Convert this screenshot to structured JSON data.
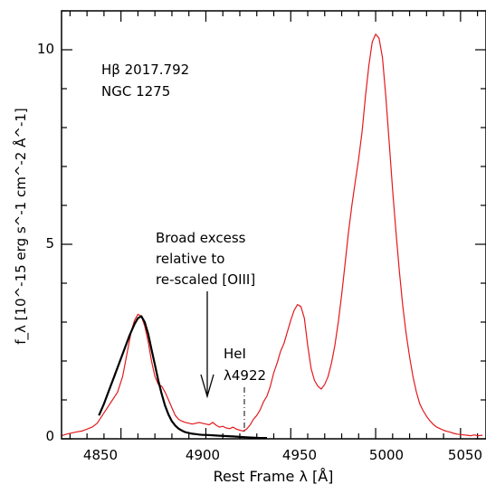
{
  "chart_data": {
    "type": "line",
    "xlabel": "Rest Frame λ [Å]",
    "ylabel": "f_λ [10^-15 erg s^-1 cm^-2 Å^-1]",
    "xlim": [
      4815,
      5065
    ],
    "ylim": [
      0,
      11
    ],
    "x_ticks": [
      "4850",
      "4900",
      "4950",
      "5000",
      "5050"
    ],
    "y_ticks": [
      "0",
      "5",
      "10"
    ],
    "grid": false,
    "colors": {
      "observed": "#e31a1c",
      "rescaled": "#000000",
      "axes": "#000000"
    },
    "annotations": {
      "line1": "Hβ 2017.792",
      "line2": "NGC 1275",
      "excess": [
        "Broad excess",
        "relative to",
        "re-scaled [OIII]"
      ],
      "hei_label": [
        "HeI",
        "λ4922"
      ]
    },
    "series": [
      {
        "x": [
          4815,
          4818,
          4821,
          4824,
          4827,
          4830,
          4833,
          4836,
          4839,
          4842,
          4845,
          4848,
          4851,
          4854,
          4856,
          4858,
          4860,
          4862,
          4864,
          4866,
          4868,
          4870,
          4872,
          4874,
          4876,
          4878,
          4880,
          4882,
          4884,
          4886,
          4888,
          4890,
          4892,
          4894,
          4896,
          4898,
          4900,
          4902,
          4904,
          4906,
          4908,
          4910,
          4912,
          4914,
          4916,
          4918,
          4920,
          4922,
          4924,
          4926,
          4928,
          4930,
          4932,
          4934,
          4936,
          4938,
          4940,
          4942,
          4944,
          4946,
          4948,
          4950,
          4952,
          4954,
          4956,
          4958,
          4960,
          4962,
          4964,
          4966,
          4968,
          4970,
          4972,
          4974,
          4976,
          4978,
          4980,
          4982,
          4984,
          4986,
          4988,
          4990,
          4992,
          4994,
          4996,
          4998,
          5000,
          5002,
          5004,
          5006,
          5008,
          5010,
          5012,
          5014,
          5016,
          5018,
          5020,
          5022,
          5024,
          5026,
          5028,
          5030,
          5032,
          5034,
          5036,
          5038,
          5040,
          5042,
          5044,
          5046,
          5048,
          5050,
          5052,
          5054,
          5056,
          5058,
          5060,
          5063
        ],
        "values": [
          0.08,
          0.12,
          0.15,
          0.18,
          0.2,
          0.25,
          0.3,
          0.4,
          0.6,
          0.8,
          1.0,
          1.2,
          1.6,
          2.3,
          2.75,
          3.05,
          3.2,
          3.15,
          2.9,
          2.5,
          2.0,
          1.6,
          1.4,
          1.35,
          1.2,
          1.0,
          0.8,
          0.6,
          0.5,
          0.45,
          0.42,
          0.4,
          0.38,
          0.4,
          0.42,
          0.4,
          0.38,
          0.36,
          0.42,
          0.35,
          0.3,
          0.32,
          0.28,
          0.26,
          0.3,
          0.25,
          0.22,
          0.2,
          0.25,
          0.35,
          0.5,
          0.6,
          0.75,
          0.95,
          1.1,
          1.35,
          1.7,
          1.95,
          2.25,
          2.45,
          2.75,
          3.05,
          3.3,
          3.45,
          3.4,
          3.1,
          2.4,
          1.8,
          1.5,
          1.35,
          1.28,
          1.4,
          1.6,
          1.95,
          2.4,
          3.0,
          3.7,
          4.5,
          5.3,
          6.0,
          6.6,
          7.2,
          7.9,
          8.8,
          9.6,
          10.2,
          10.4,
          10.3,
          9.8,
          8.8,
          7.6,
          6.4,
          5.3,
          4.3,
          3.4,
          2.7,
          2.1,
          1.6,
          1.2,
          0.9,
          0.72,
          0.58,
          0.46,
          0.37,
          0.3,
          0.26,
          0.22,
          0.19,
          0.17,
          0.14,
          0.12,
          0.11,
          0.1,
          0.09,
          0.08,
          0.1,
          0.08,
          0.09
        ]
      },
      {
        "x": [
          4837,
          4840,
          4843,
          4846,
          4849,
          4852,
          4855,
          4858,
          4860,
          4862,
          4864,
          4866,
          4868,
          4870,
          4872,
          4874,
          4876,
          4878,
          4880,
          4882,
          4884,
          4886,
          4888,
          4890,
          4892,
          4894,
          4896,
          4898,
          4900,
          4904,
          4908,
          4912,
          4916,
          4920,
          4924,
          4928,
          4932,
          4936
        ],
        "values": [
          0.6,
          0.9,
          1.25,
          1.6,
          1.95,
          2.3,
          2.65,
          2.95,
          3.1,
          3.15,
          3.0,
          2.7,
          2.3,
          1.9,
          1.5,
          1.15,
          0.85,
          0.62,
          0.45,
          0.34,
          0.26,
          0.21,
          0.17,
          0.15,
          0.13,
          0.12,
          0.11,
          0.1,
          0.1,
          0.09,
          0.08,
          0.07,
          0.06,
          0.05,
          0.04,
          0.03,
          0.02,
          0.02
        ]
      }
    ]
  }
}
